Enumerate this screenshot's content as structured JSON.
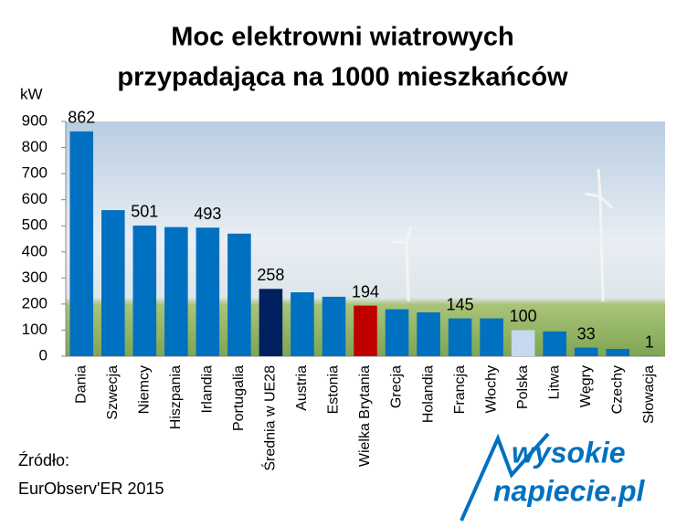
{
  "chart_data": {
    "type": "bar",
    "title": [
      "Moc elektrowni wiatrowych",
      "przypadająca na 1000 mieszkańców"
    ],
    "y_label": "kW",
    "categories": [
      "Dania",
      "Szwecja",
      "Niemcy",
      "Hiszpania",
      "Irlandia",
      "Portugalia",
      "Średnia w UE28",
      "Austria",
      "Estonia",
      "Wielka Brytania",
      "Grecja",
      "Holandia",
      "Francja",
      "Włochy",
      "Polska",
      "Litwa",
      "Węgry",
      "Czechy",
      "Słowacja"
    ],
    "values": [
      862,
      560,
      501,
      495,
      493,
      470,
      258,
      245,
      228,
      194,
      180,
      168,
      145,
      145,
      100,
      95,
      33,
      28,
      1
    ],
    "value_labels": [
      862,
      null,
      501,
      null,
      493,
      null,
      258,
      null,
      null,
      194,
      null,
      null,
      145,
      null,
      100,
      null,
      33,
      null,
      1
    ],
    "colors": [
      "#0070c0",
      "#0070c0",
      "#0070c0",
      "#0070c0",
      "#0070c0",
      "#0070c0",
      "#002060",
      "#0070c0",
      "#0070c0",
      "#c00000",
      "#0070c0",
      "#0070c0",
      "#0070c0",
      "#0070c0",
      "#c6d9f1",
      "#0070c0",
      "#0070c0",
      "#0070c0",
      "#0070c0"
    ],
    "ylim": [
      0,
      900
    ],
    "yticks": [
      0,
      100,
      200,
      300,
      400,
      500,
      600,
      700,
      800,
      900
    ]
  },
  "source": [
    "Źródło:",
    "EurObserv'ER 2015"
  ],
  "logo": [
    "wysokie",
    "napiecie.pl"
  ]
}
